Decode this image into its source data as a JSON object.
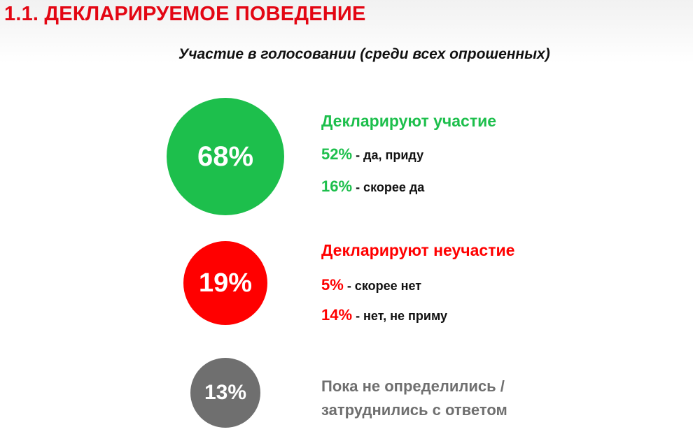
{
  "header": {
    "title": "1.1. ДЕКЛАРИРУЕМОЕ ПОВЕДЕНИЕ",
    "subtitle": "Участие в голосовании (среди всех опрошенных)"
  },
  "colors": {
    "title": "#e30613",
    "green": "#1dbf4c",
    "red": "#ff0000",
    "gray": "#6f6f6f"
  },
  "groups": [
    {
      "percent": "68%",
      "heading": "Декларируют участие",
      "items": [
        {
          "percent": "52%",
          "label": "- да, приду"
        },
        {
          "percent": "16%",
          "label": "- скорее да"
        }
      ]
    },
    {
      "percent": "19%",
      "heading": "Декларируют неучастие",
      "items": [
        {
          "percent": "5%",
          "label": "- скорее нет"
        },
        {
          "percent": "14%",
          "label": "- нет, не приму"
        }
      ]
    },
    {
      "percent": "13%",
      "heading_lines": [
        "Пока не определились /",
        "затруднились с ответом"
      ]
    }
  ]
}
